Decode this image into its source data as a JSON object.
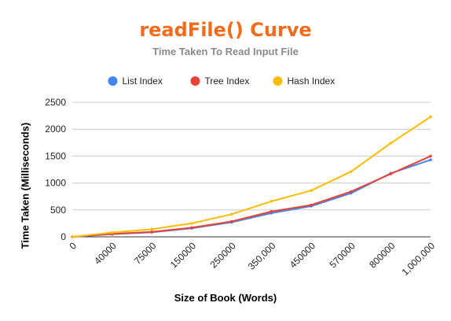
{
  "chart_data": {
    "type": "line",
    "title": "readFile() Curve",
    "subtitle": "Time Taken To Read Input File",
    "xlabel": "Size of Book (Words)",
    "ylabel": "Time Taken (Milliseconds)",
    "categories": [
      "0",
      "40000",
      "75000",
      "150000",
      "250000",
      "350,000",
      "450000",
      "570000",
      "800000",
      "1,000,000"
    ],
    "series": [
      {
        "name": "List Index",
        "color": "#4285f4",
        "values": [
          0,
          50,
          85,
          160,
          270,
          440,
          570,
          810,
          1180,
          1430
        ]
      },
      {
        "name": "Tree Index",
        "color": "#ea4335",
        "values": [
          0,
          55,
          90,
          170,
          285,
          470,
          590,
          840,
          1170,
          1500
        ]
      },
      {
        "name": "Hash Index",
        "color": "#fbbc04",
        "values": [
          0,
          80,
          140,
          250,
          420,
          660,
          860,
          1210,
          1740,
          2230
        ]
      }
    ],
    "ylim": [
      0,
      2500
    ],
    "yticks": [
      "0",
      "500",
      "1000",
      "1500",
      "2000",
      "2500"
    ],
    "grid": true,
    "legend_position": "top",
    "title_color": "#f46b1b"
  }
}
